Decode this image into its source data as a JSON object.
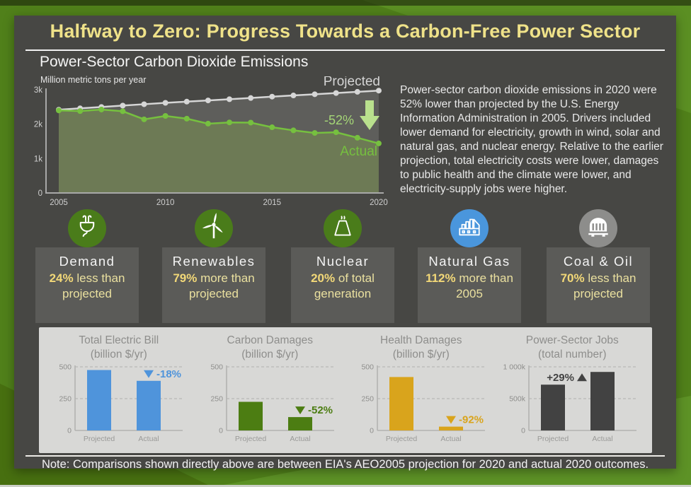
{
  "header": {
    "title": "Halfway to Zero: Progress Towards a Carbon-Free Power Sector",
    "subtitle": "Power-Sector Carbon Dioxide Emissions"
  },
  "summary_text": "Power-sector carbon dioxide emissions in 2020 were 52% lower than projected by the U.S. Energy Information Administration in 2005. Drivers included lower demand for electricity, growth in wind, solar and natural gas, and nuclear energy. Relative to the earlier projection, total electricity costs were lower, damages to public health and the climate were lower, and electricity-supply jobs were higher.",
  "note": "Note: Comparisons shown directly above are between EIA's AEO2005 projection for 2020 and actual 2020 outcomes.",
  "stats": [
    {
      "icon": "plug-icon",
      "circle_color": "#4a7c1a",
      "label": "Demand",
      "value": "24%",
      "desc": "less than projected"
    },
    {
      "icon": "wind-turbine-icon",
      "circle_color": "#4a7c1a",
      "label": "Renewables",
      "value": "79%",
      "desc": "more than projected"
    },
    {
      "icon": "cooling-tower-icon",
      "circle_color": "#4a7c1a",
      "label": "Nuclear",
      "value": "20%",
      "desc": "of total generation"
    },
    {
      "icon": "factory-icon",
      "circle_color": "#4a96dc",
      "label": "Natural Gas",
      "value": "112%",
      "desc": "more than 2005"
    },
    {
      "icon": "coal-car-icon",
      "circle_color": "#8d8d8b",
      "label": "Coal & Oil",
      "value": "70%",
      "desc": "less than projected"
    }
  ],
  "colors": {
    "projected_line": "#d6d6d6",
    "actual_line": "#76c03f",
    "annotation_green": "#a5d677",
    "arrow_green": "#b9e08d"
  },
  "chart_data": [
    {
      "type": "line",
      "title": "Power-Sector Carbon Dioxide Emissions",
      "ylabel": "Million metric tons per year",
      "x": [
        2005,
        2006,
        2007,
        2008,
        2009,
        2010,
        2011,
        2012,
        2013,
        2014,
        2015,
        2016,
        2017,
        2018,
        2019,
        2020
      ],
      "series": [
        {
          "name": "Projected",
          "color": "#d6d6d6",
          "values": [
            2420,
            2460,
            2500,
            2540,
            2580,
            2620,
            2655,
            2690,
            2725,
            2760,
            2800,
            2835,
            2870,
            2905,
            2940,
            2975
          ]
        },
        {
          "name": "Actual",
          "color": "#76c03f",
          "values": [
            2400,
            2380,
            2425,
            2375,
            2140,
            2240,
            2160,
            2015,
            2050,
            2045,
            1910,
            1820,
            1745,
            1765,
            1605,
            1440
          ]
        }
      ],
      "annotation": "-52%",
      "ylim": [
        0,
        3000
      ],
      "yticks": [
        "0",
        "1k",
        "2k",
        "3k"
      ],
      "ytick_vals": [
        0,
        1000,
        2000,
        3000
      ],
      "xticks": [
        2005,
        2010,
        2015,
        2020
      ],
      "grid": false,
      "legend_position": "inline-labels"
    },
    {
      "type": "bar",
      "title": "Total Electric Bill",
      "subtitle": "(billion $/yr)",
      "categories": [
        "Projected",
        "Actual"
      ],
      "values": [
        475,
        390
      ],
      "delta": "-18%",
      "direction": "down",
      "color": "#4f94db",
      "ylim": [
        0,
        500
      ],
      "yticks": [
        "0",
        "250",
        "500"
      ],
      "ytick_vals": [
        0,
        250,
        500
      ]
    },
    {
      "type": "bar",
      "title": "Carbon Damages",
      "subtitle": "(billion $/yr)",
      "categories": [
        "Projected",
        "Actual"
      ],
      "values": [
        225,
        105
      ],
      "delta": "-52%",
      "direction": "down",
      "color": "#4c7d12",
      "ylim": [
        0,
        500
      ],
      "yticks": [
        "0",
        "250",
        "500"
      ],
      "ytick_vals": [
        0,
        250,
        500
      ]
    },
    {
      "type": "bar",
      "title": "Health Damages",
      "subtitle": "(billion $/yr)",
      "categories": [
        "Projected",
        "Actual"
      ],
      "values": [
        420,
        30
      ],
      "delta": "-92%",
      "direction": "down",
      "color": "#d9a41c",
      "ylim": [
        0,
        500
      ],
      "yticks": [
        "0",
        "250",
        "500"
      ],
      "ytick_vals": [
        0,
        250,
        500
      ]
    },
    {
      "type": "bar",
      "title": "Power-Sector Jobs",
      "subtitle": "(total number)",
      "categories": [
        "Projected",
        "Actual"
      ],
      "values": [
        720,
        920
      ],
      "delta": "+29%",
      "direction": "up",
      "color": "#424242",
      "ylim": [
        0,
        1000
      ],
      "yticks": [
        "0",
        "500k",
        "1 000k"
      ],
      "ytick_vals": [
        0,
        500,
        1000
      ]
    }
  ]
}
